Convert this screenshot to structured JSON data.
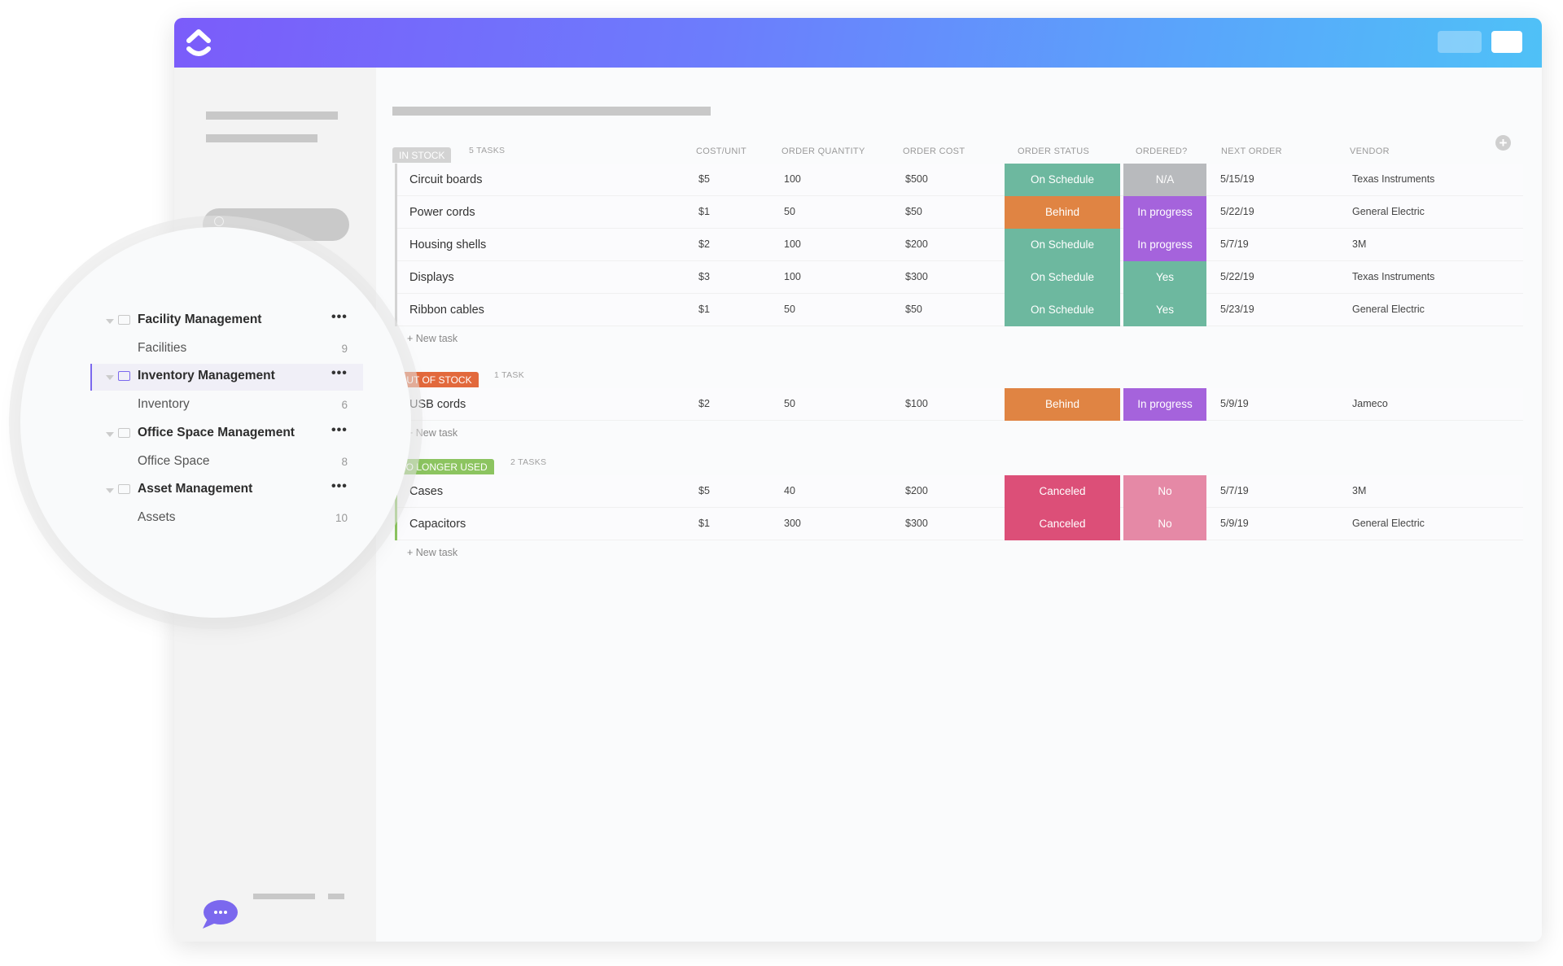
{
  "header": {
    "logo": "clickup-logo",
    "brand_gradient": [
      "#7b5cfa",
      "#4fc1f7"
    ]
  },
  "table": {
    "columns": [
      "COST/UNIT",
      "ORDER QUANTITY",
      "ORDER COST",
      "ORDER STATUS",
      "ORDERED?",
      "NEXT ORDER",
      "VENDOR"
    ],
    "add_column_icon": "plus-circle-icon",
    "new_task_label": "+ New task",
    "groups": [
      {
        "label": "IN STOCK",
        "count": "5 TASKS",
        "color": "#d3d3d3",
        "rows": [
          {
            "name": "Circuit boards",
            "cost": "$5",
            "qty": "100",
            "order_cost": "$500",
            "status": "On Schedule",
            "ordered": "N/A",
            "next": "5/15/19",
            "vendor": "Texas Instruments"
          },
          {
            "name": "Power cords",
            "cost": "$1",
            "qty": "50",
            "order_cost": "$50",
            "status": "Behind",
            "ordered": "In progress",
            "next": "5/22/19",
            "vendor": "General Electric"
          },
          {
            "name": "Housing shells",
            "cost": "$2",
            "qty": "100",
            "order_cost": "$200",
            "status": "On Schedule",
            "ordered": "In progress",
            "next": "5/7/19",
            "vendor": "3M"
          },
          {
            "name": "Displays",
            "cost": "$3",
            "qty": "100",
            "order_cost": "$300",
            "status": "On Schedule",
            "ordered": "Yes",
            "next": "5/22/19",
            "vendor": "Texas Instruments"
          },
          {
            "name": "Ribbon cables",
            "cost": "$1",
            "qty": "50",
            "order_cost": "$50",
            "status": "On Schedule",
            "ordered": "Yes",
            "next": "5/23/19",
            "vendor": "General Electric"
          }
        ]
      },
      {
        "label": "OUT OF STOCK",
        "count": "1 TASK",
        "color": "#e2693c",
        "rows": [
          {
            "name": "USB cords",
            "cost": "$2",
            "qty": "50",
            "order_cost": "$100",
            "status": "Behind",
            "ordered": "In progress",
            "next": "5/9/19",
            "vendor": "Jameco"
          }
        ]
      },
      {
        "label": "NO LONGER USED",
        "count": "2 TASKS",
        "color": "#8cc460",
        "rows": [
          {
            "name": "Cases",
            "cost": "$5",
            "qty": "40",
            "order_cost": "$200",
            "status": "Canceled",
            "ordered": "No",
            "next": "5/7/19",
            "vendor": "3M"
          },
          {
            "name": "Capacitors",
            "cost": "$1",
            "qty": "300",
            "order_cost": "$300",
            "status": "Canceled",
            "ordered": "No",
            "next": "5/9/19",
            "vendor": "General Electric"
          }
        ]
      }
    ],
    "status_colors": {
      "On Schedule": "#6db89f",
      "Behind": "#e08443",
      "Canceled": "#dc4f78",
      "N/A": "#b8babd",
      "In progress": "#a563dc",
      "Yes": "#6db89f",
      "No": "#e589a6"
    }
  },
  "sidebar": {
    "folders": [
      {
        "label": "Facility Management",
        "list": "Facilities",
        "count": "9",
        "active": false
      },
      {
        "label": "Inventory Management",
        "list": "Inventory",
        "count": "6",
        "active": true
      },
      {
        "label": "Office Space Management",
        "list": "Office Space",
        "count": "8",
        "active": false
      },
      {
        "label": "Asset Management",
        "list": "Assets",
        "count": "10",
        "active": false
      }
    ],
    "more_icon": "more-dots-icon",
    "chat_icon": "chat-bubble-icon",
    "accent": "#7b68ee"
  }
}
